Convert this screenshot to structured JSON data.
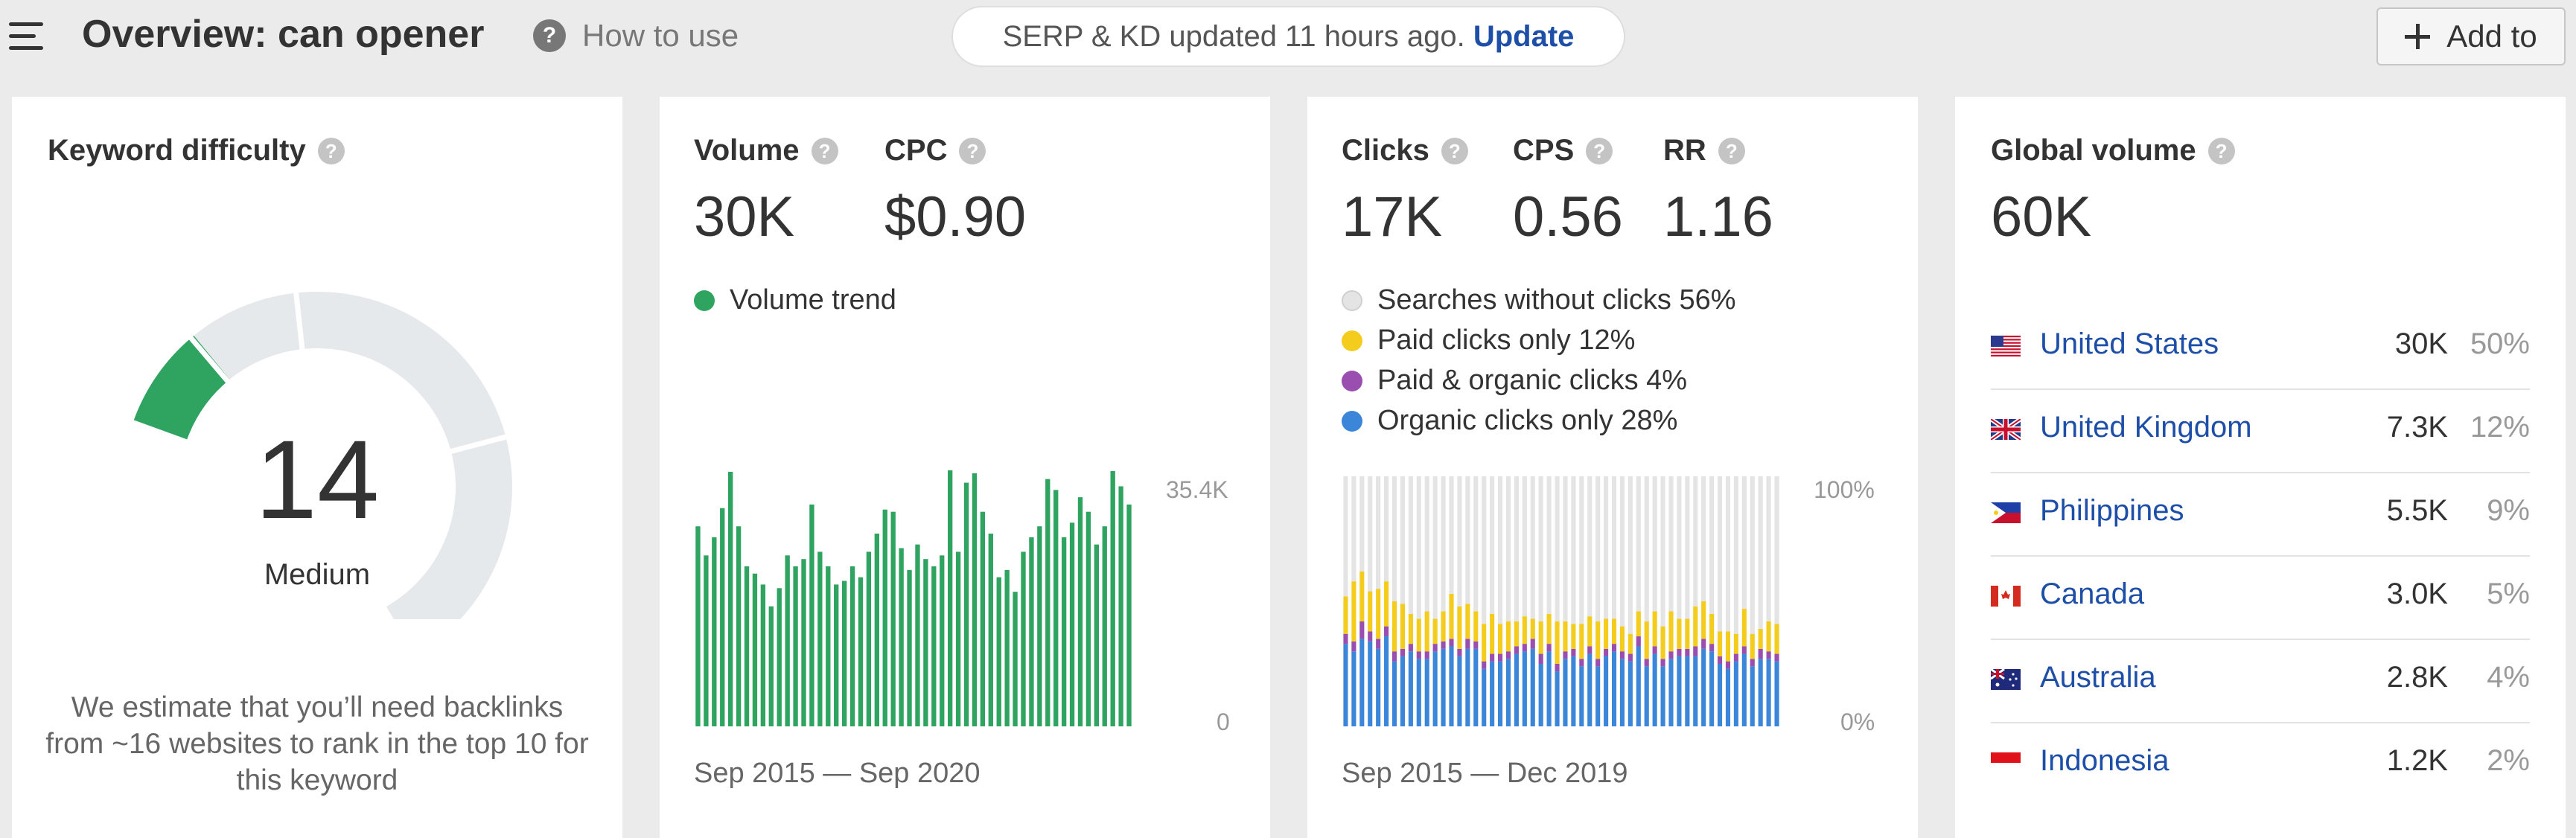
{
  "header": {
    "title": "Overview: can opener",
    "how_to_use": "How to use",
    "help_glyph": "?",
    "update_notice": "SERP & KD updated 11 hours ago.",
    "update_link": "Update",
    "add_to": "Add to"
  },
  "keyword_difficulty": {
    "label": "Keyword difficulty",
    "value": "14",
    "level": "Medium",
    "description": "We estimate that you’ll need backlinks from ~16 websites to rank in the top 10 for this keyword",
    "score_fraction": 0.14
  },
  "volume": {
    "volume_label": "Volume",
    "volume_value": "30K",
    "cpc_label": "CPC",
    "cpc_value": "$0.90",
    "legend": "Volume trend",
    "y_max_label": "35.4K",
    "y_min_label": "0",
    "range": "Sep 2015 — Sep 2020"
  },
  "clicks": {
    "clicks_label": "Clicks",
    "clicks_value": "17K",
    "cps_label": "CPS",
    "cps_value": "0.56",
    "rr_label": "RR",
    "rr_value": "1.16",
    "legend": [
      {
        "label": "Searches without clicks 56%",
        "color": "#e4e4e4"
      },
      {
        "label": "Paid clicks only 12%",
        "color": "#f3cc1d"
      },
      {
        "label": "Paid & organic clicks 4%",
        "color": "#9a4fb0"
      },
      {
        "label": "Organic clicks only 28%",
        "color": "#3b86d8"
      }
    ],
    "y_max_label": "100%",
    "y_min_label": "0%",
    "range": "Sep 2015 — Dec 2019"
  },
  "global_volume": {
    "label": "Global volume",
    "value": "60K",
    "countries": [
      {
        "name": "United States",
        "volume": "30K",
        "share": "50%",
        "flag": "us-flag-icon"
      },
      {
        "name": "United Kingdom",
        "volume": "7.3K",
        "share": "12%",
        "flag": "uk-flag-icon"
      },
      {
        "name": "Philippines",
        "volume": "5.5K",
        "share": "9%",
        "flag": "ph-flag-icon"
      },
      {
        "name": "Canada",
        "volume": "3.0K",
        "share": "5%",
        "flag": "ca-flag-icon"
      },
      {
        "name": "Australia",
        "volume": "2.8K",
        "share": "4%",
        "flag": "au-flag-icon"
      },
      {
        "name": "Indonesia",
        "volume": "1.2K",
        "share": "2%",
        "flag": "id-flag-icon"
      }
    ]
  },
  "chart_data": [
    {
      "type": "bar",
      "legend": "Volume trend",
      "color": "#2fa360",
      "ylim": [
        0,
        35400
      ],
      "tick_labels": [
        "35.4K",
        "0"
      ],
      "range": "Sep 2015 — Sep 2020",
      "values": [
        27500,
        23500,
        26000,
        30000,
        35000,
        27500,
        22000,
        21000,
        19500,
        16500,
        19000,
        23500,
        22000,
        23000,
        30500,
        24000,
        22000,
        19500,
        20000,
        22000,
        20500,
        24000,
        26500,
        29800,
        29500,
        24500,
        21500,
        25000,
        23000,
        22000,
        23500,
        35200,
        24000,
        33500,
        34800,
        29500,
        26500,
        20500,
        21500,
        18500,
        24000,
        26000,
        27500,
        34000,
        32500,
        26000,
        28000,
        31500,
        29500,
        25000,
        27500,
        35100,
        33000,
        30500
      ]
    },
    {
      "type": "stacked-bar",
      "ylim": [
        0,
        100
      ],
      "tick_labels": [
        "100%",
        "0%"
      ],
      "range": "Sep 2015 — Dec 2019",
      "series": [
        {
          "name": "Organic clicks only",
          "color": "#3b86d8",
          "values": [
            33,
            30,
            35,
            34,
            31,
            36,
            26,
            28,
            30,
            27,
            27,
            30,
            31,
            32,
            28,
            31,
            31,
            23,
            26,
            26,
            27,
            29,
            30,
            31,
            25,
            30,
            22,
            27,
            28,
            24,
            29,
            24,
            28,
            30,
            27,
            26,
            32,
            24,
            29,
            24,
            27,
            28,
            28,
            28,
            31,
            30,
            25,
            23,
            26,
            29,
            24,
            27,
            27,
            26
          ]
        },
        {
          "name": "Paid & organic clicks",
          "color": "#9a4fb0",
          "values": [
            4,
            4,
            7,
            4,
            4,
            4,
            4,
            3,
            3,
            3,
            3,
            3,
            3,
            3,
            3,
            4,
            3,
            3,
            3,
            3,
            3,
            3,
            3,
            4,
            4,
            3,
            3,
            3,
            3,
            3,
            3,
            3,
            3,
            3,
            3,
            3,
            4,
            3,
            3,
            3,
            3,
            3,
            3,
            4,
            4,
            3,
            3,
            3,
            3,
            3,
            3,
            4,
            3,
            3
          ]
        },
        {
          "name": "Paid clicks only",
          "color": "#f3cc1d",
          "values": [
            15,
            24,
            20,
            16,
            20,
            18,
            20,
            18,
            12,
            13,
            16,
            10,
            12,
            18,
            17,
            14,
            12,
            15,
            16,
            12,
            12,
            10,
            11,
            8,
            13,
            12,
            17,
            12,
            10,
            14,
            12,
            15,
            12,
            10,
            10,
            8,
            10,
            15,
            14,
            13,
            16,
            12,
            12,
            16,
            15,
            12,
            10,
            12,
            8,
            15,
            10,
            8,
            12,
            12
          ]
        },
        {
          "name": "Searches without clicks",
          "color": "#e4e4e4",
          "values": [
            48,
            42,
            38,
            46,
            45,
            42,
            50,
            51,
            55,
            57,
            54,
            57,
            54,
            47,
            52,
            51,
            54,
            59,
            55,
            59,
            58,
            58,
            56,
            57,
            58,
            55,
            58,
            58,
            59,
            59,
            56,
            58,
            57,
            57,
            60,
            63,
            54,
            58,
            54,
            60,
            54,
            57,
            57,
            52,
            50,
            55,
            62,
            62,
            63,
            53,
            63,
            61,
            58,
            59
          ]
        }
      ]
    }
  ]
}
